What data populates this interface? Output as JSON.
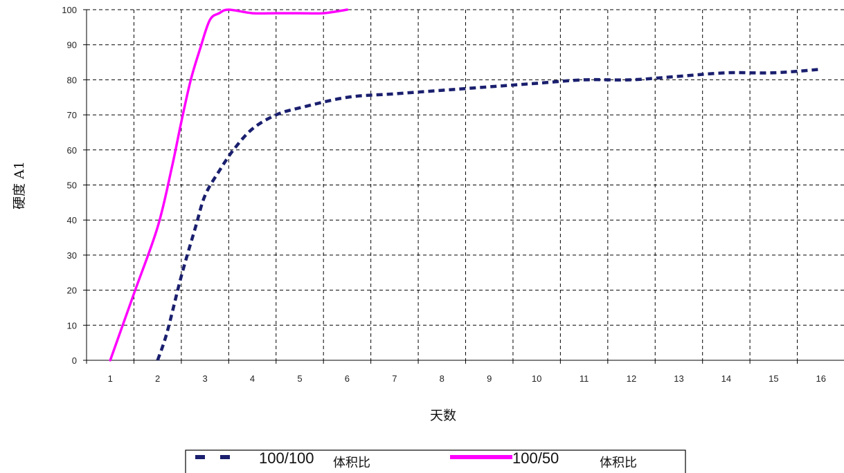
{
  "chart_data": {
    "type": "line",
    "xlabel": "天数",
    "ylabel": "硬度 A1",
    "xlim": [
      0.5,
      16.5
    ],
    "ylim": [
      0,
      100
    ],
    "x_ticks": [
      "1",
      "2",
      "3",
      "4",
      "5",
      "6",
      "7",
      "8",
      "9",
      "10",
      "11",
      "12",
      "13",
      "14",
      "15",
      "16"
    ],
    "y_ticks": [
      "0",
      "10",
      "20",
      "30",
      "40",
      "50",
      "60",
      "70",
      "80",
      "90",
      "100"
    ],
    "grid": true,
    "legend_position": "bottom-center",
    "series": [
      {
        "name": "100/100",
        "name_suffix": "体积比",
        "style": "dashed",
        "color": "#1a1f6e",
        "x": [
          2,
          2.2,
          2.5,
          2.8,
          3,
          3.3,
          3.6,
          4,
          4.5,
          5,
          6,
          7,
          8,
          9,
          10,
          11,
          12,
          13,
          14,
          15,
          16
        ],
        "y": [
          0,
          8,
          24,
          38,
          47,
          54,
          60,
          66,
          70,
          72,
          75,
          76,
          77,
          78,
          79,
          80,
          80,
          81,
          82,
          82,
          83
        ]
      },
      {
        "name": "100/50",
        "name_suffix": "体积比",
        "style": "solid",
        "color": "#ff00ff",
        "x": [
          1,
          1.5,
          2,
          2.3,
          2.5,
          2.7,
          2.9,
          3.1,
          3.3,
          3.5,
          4,
          4.5,
          5,
          5.5,
          6
        ],
        "y": [
          0,
          19,
          38,
          55,
          68,
          80,
          89,
          97,
          99,
          100,
          99,
          99,
          99,
          99,
          100
        ]
      }
    ]
  }
}
